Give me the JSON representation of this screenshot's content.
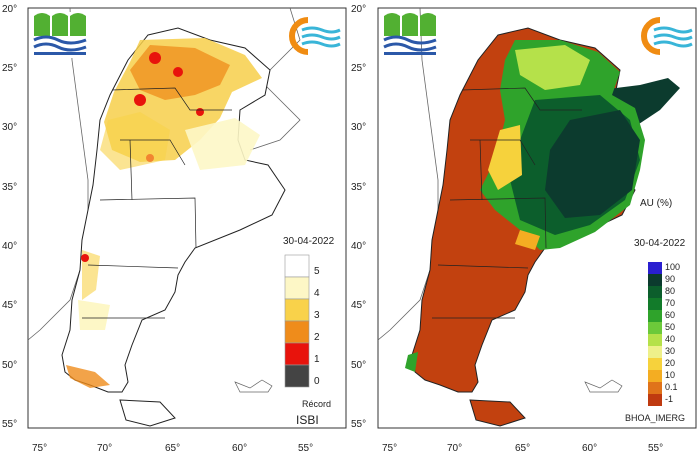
{
  "left_panel": {
    "lat_ticks": [
      "20°",
      "25°",
      "30°",
      "35°",
      "40°",
      "45°",
      "50°",
      "55°"
    ],
    "lon_ticks": [
      "75°",
      "70°",
      "65°",
      "60°",
      "55°"
    ],
    "date": "30-04-2022",
    "legend_title": "ISBI",
    "legend": [
      {
        "label": "5",
        "color": "#ffffff"
      },
      {
        "label": "4",
        "color": "#fdf7c6"
      },
      {
        "label": "3",
        "color": "#f9d24a"
      },
      {
        "label": "2",
        "color": "#ef8c1b"
      },
      {
        "label": "1",
        "color": "#e8130c"
      },
      {
        "label": "0",
        "color": "#444444"
      }
    ],
    "record_label": "Récord"
  },
  "right_panel": {
    "lat_ticks": [
      "20°",
      "25°",
      "30°",
      "35°",
      "40°",
      "45°",
      "50°",
      "55°"
    ],
    "lon_ticks": [
      "75°",
      "70°",
      "65°",
      "60°",
      "55°"
    ],
    "variable_label": "AU (%)",
    "date": "30-04-2022",
    "legend": [
      {
        "label": "100",
        "color": "#2a1fd0"
      },
      {
        "label": "90",
        "color": "#0c3b2e"
      },
      {
        "label": "80",
        "color": "#0c5e2c"
      },
      {
        "label": "70",
        "color": "#127b2a"
      },
      {
        "label": "60",
        "color": "#2fa32b"
      },
      {
        "label": "50",
        "color": "#6cc93a"
      },
      {
        "label": "40",
        "color": "#b5e14a"
      },
      {
        "label": "30",
        "color": "#eef08a"
      },
      {
        "label": "20",
        "color": "#f6d23c"
      },
      {
        "label": "10",
        "color": "#f4ad22"
      },
      {
        "label": "0.1",
        "color": "#e0731a"
      },
      {
        "label": "-1",
        "color": "#bf3a10"
      }
    ],
    "source_label": "BHOA_IMERG"
  }
}
